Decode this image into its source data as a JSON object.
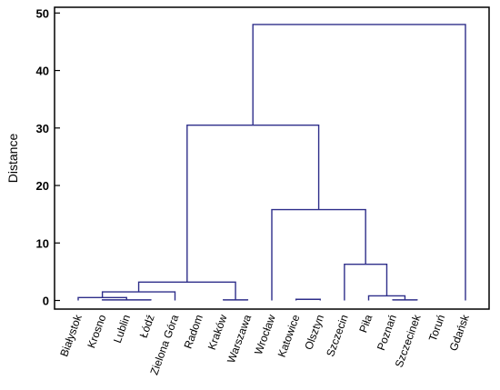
{
  "chart_data": {
    "type": "dendrogram",
    "ylabel": "Distance",
    "ylim": [
      -1.5,
      51
    ],
    "yticks": [
      0,
      10,
      20,
      30,
      40,
      50
    ],
    "leaves": [
      "Białystok",
      "Krosno",
      "Lublin",
      "Łódź",
      "Zielona Góra",
      "Radom",
      "Kraków",
      "Warszawa",
      "Wrocław",
      "Katowice",
      "Olsztyn",
      "Szczecin",
      "Piła",
      "Poznań",
      "Szczecinek",
      "Toruń",
      "Gdańsk"
    ],
    "merges": [
      {
        "left": "Krosno",
        "right": "Łódź",
        "height": 0.1
      },
      {
        "left": "Białystok",
        "right": "c1",
        "height": 0.5
      },
      {
        "left": "c2",
        "right": "Zielona Góra",
        "height": 1.5
      },
      {
        "left": "Kraków",
        "right": "Warszawa",
        "height": 0.1
      },
      {
        "left": "c3",
        "right": "c4",
        "height": 3.2
      },
      {
        "left": "Katowice",
        "right": "Olsztyn",
        "height": 0.2
      },
      {
        "left": "Poznań",
        "right": "Szczecinek",
        "height": 0.1
      },
      {
        "left": "Piła",
        "right": "c7",
        "height": 0.8
      },
      {
        "left": "Szczecin",
        "right": "c8",
        "height": 6.3
      },
      {
        "left": "Wrocław",
        "right": "c9",
        "height": 15.8
      },
      {
        "left": "c5",
        "right": "c10",
        "height": 30.5
      },
      {
        "left": "c11",
        "right": "Gdańsk",
        "height": 48
      }
    ],
    "color": "#2e2e8a"
  }
}
